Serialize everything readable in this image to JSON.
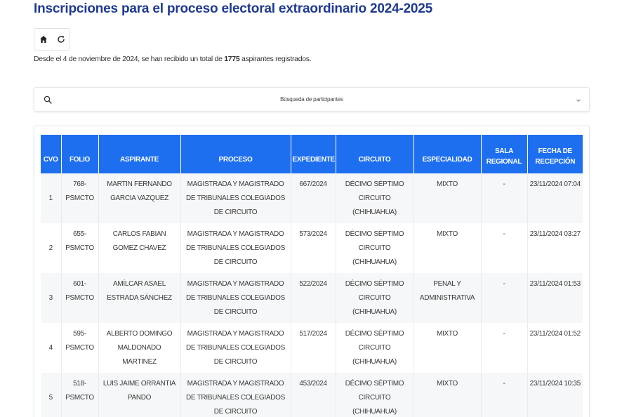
{
  "page": {
    "title": "Inscripciones para el proceso electoral extraordinario 2024-2025",
    "summary_prefix": "Desde el 4 de noviembre de 2024, se han recibido un total de ",
    "summary_count": "1775",
    "summary_suffix": " aspirantes registrados."
  },
  "toolbar": {
    "home_icon": "home-icon",
    "refresh_icon": "refresh-icon"
  },
  "search": {
    "placeholder": "Búsqueda de participantes",
    "icon": "search-icon",
    "toggle_icon": "chevron-down-icon"
  },
  "table": {
    "headers": {
      "cvo": "CVO",
      "folio": "FOLIO",
      "aspirante": "ASPIRANTE",
      "proceso": "PROCESO",
      "expediente": "EXPEDIENTE",
      "circuito": "CIRCUITO",
      "especialidad": "ESPECIALIDAD",
      "sala_regional": "SALA REGIONAL",
      "fecha_recepcion": "FECHA DE RECEPCIÓN"
    },
    "rows": [
      {
        "cvo": "1",
        "folio": "768-PSMCTO",
        "aspirante": "MARTIN FERNANDO GARCIA VAZQUEZ",
        "proceso": "MAGISTRADA Y MAGISTRADO DE TRIBUNALES COLEGIADOS DE CIRCUITO",
        "expediente": "667/2024",
        "circuito": "DÉCIMO SÉPTIMO CIRCUITO (CHIHUAHUA)",
        "especialidad": "MIXTO",
        "sala_regional": "-",
        "fecha_recepcion": "23/11/2024 07:04"
      },
      {
        "cvo": "2",
        "folio": "655-PSMCTO",
        "aspirante": "CARLOS FABIAN GOMEZ CHAVEZ",
        "proceso": "MAGISTRADA Y MAGISTRADO DE TRIBUNALES COLEGIADOS DE CIRCUITO",
        "expediente": "573/2024",
        "circuito": "DÉCIMO SÉPTIMO CIRCUITO (CHIHUAHUA)",
        "especialidad": "MIXTO",
        "sala_regional": "-",
        "fecha_recepcion": "23/11/2024 03:27"
      },
      {
        "cvo": "3",
        "folio": "601-PSMCTO",
        "aspirante": "AMÍLCAR ASAEL ESTRADA SÁNCHEZ",
        "proceso": "MAGISTRADA Y MAGISTRADO DE TRIBUNALES COLEGIADOS DE CIRCUITO",
        "expediente": "522/2024",
        "circuito": "DÉCIMO SÉPTIMO CIRCUITO (CHIHUAHUA)",
        "especialidad": "PENAL Y ADMINISTRATIVA",
        "sala_regional": "-",
        "fecha_recepcion": "23/11/2024 01:53"
      },
      {
        "cvo": "4",
        "folio": "595-PSMCTO",
        "aspirante": "ALBERTO DOMINGO MALDONADO MARTINEZ",
        "proceso": "MAGISTRADA Y MAGISTRADO DE TRIBUNALES COLEGIADOS DE CIRCUITO",
        "expediente": "517/2024",
        "circuito": "DÉCIMO SÉPTIMO CIRCUITO (CHIHUAHUA)",
        "especialidad": "MIXTO",
        "sala_regional": "-",
        "fecha_recepcion": "23/11/2024 01:52"
      },
      {
        "cvo": "5",
        "folio": "518-PSMCTO",
        "aspirante": "LUIS JAIME ORRANTIA PANDO",
        "proceso": "MAGISTRADA Y MAGISTRADO DE TRIBUNALES COLEGIADOS DE CIRCUITO",
        "expediente": "453/2024",
        "circuito": "DÉCIMO SÉPTIMO CIRCUITO (CHIHUAHUA)",
        "especialidad": "MIXTO",
        "sala_regional": "-",
        "fecha_recepcion": "23/11/2024 10:35"
      }
    ]
  },
  "colors": {
    "title": "#1f3a93",
    "header_bg": "#1e6ff0",
    "header_text": "#ffffff",
    "row_alt": "#f6f7f8"
  }
}
